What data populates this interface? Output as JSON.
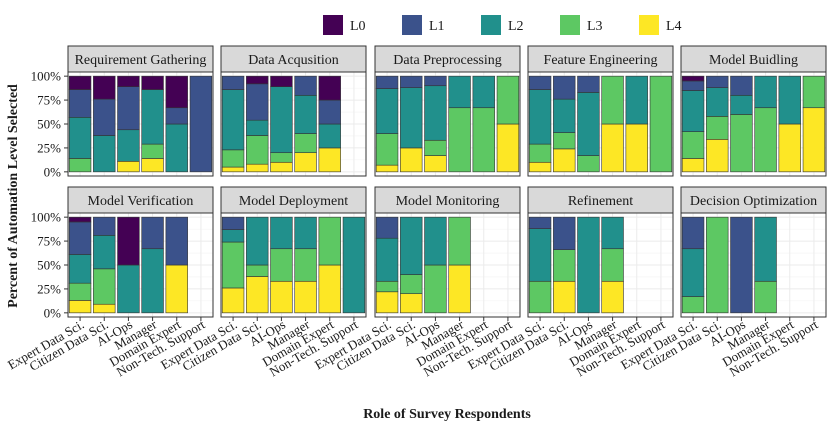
{
  "chart_data": {
    "type": "bar",
    "stacked": true,
    "ylabel": "Percent of Automation Level Selected",
    "xlabel": "Role of Survey Respondents",
    "ylim": [
      0,
      100
    ],
    "y_ticks": [
      "0%",
      "25%",
      "50%",
      "75%",
      "100%"
    ],
    "y_tick_values": [
      0,
      25,
      50,
      75,
      100
    ],
    "legend_position": "top",
    "levels": [
      "L0",
      "L1",
      "L2",
      "L3",
      "L4"
    ],
    "colors": {
      "L0": "#440154",
      "L1": "#3B528B",
      "L2": "#21908C",
      "L3": "#5DC863",
      "L4": "#FDE725"
    },
    "categories": [
      "Expert Data Sci.",
      "Citizen Data Sci.",
      "AI-Ops",
      "Manager",
      "Domain Expert",
      "Non-Tech. Support"
    ],
    "facets": [
      {
        "title": "Requirement Gathering",
        "values": [
          {
            "L0": 14,
            "L1": 29,
            "L2": 43,
            "L3": 14,
            "L4": 0
          },
          {
            "L0": 24,
            "L1": 38,
            "L2": 38,
            "L3": 0,
            "L4": 0
          },
          {
            "L0": 11,
            "L1": 45,
            "L2": 33,
            "L3": 0,
            "L4": 11
          },
          {
            "L0": 14,
            "L1": 0,
            "L2": 57,
            "L3": 15,
            "L4": 14
          },
          {
            "L0": 33,
            "L1": 17,
            "L2": 50,
            "L3": 0,
            "L4": 0
          },
          {
            "L0": 0,
            "L1": 100,
            "L2": 0,
            "L3": 0,
            "L4": 0
          }
        ]
      },
      {
        "title": "Data Acqusition",
        "values": [
          {
            "L0": 0,
            "L1": 14,
            "L2": 63,
            "L3": 18,
            "L4": 5
          },
          {
            "L0": 8,
            "L1": 38,
            "L2": 16,
            "L3": 30,
            "L4": 8
          },
          {
            "L0": 11,
            "L1": 0,
            "L2": 69,
            "L3": 10,
            "L4": 10
          },
          {
            "L0": 0,
            "L1": 20,
            "L2": 40,
            "L3": 20,
            "L4": 20
          },
          {
            "L0": 25,
            "L1": 25,
            "L2": 25,
            "L3": 0,
            "L4": 25
          }
        ]
      },
      {
        "title": "Data Preprocessing",
        "values": [
          {
            "L0": 0,
            "L1": 13,
            "L2": 47,
            "L3": 33,
            "L4": 7
          },
          {
            "L0": 0,
            "L1": 12,
            "L2": 63,
            "L3": 0,
            "L4": 25
          },
          {
            "L0": 0,
            "L1": 10,
            "L2": 57,
            "L3": 16,
            "L4": 17
          },
          {
            "L0": 0,
            "L1": 0,
            "L2": 33,
            "L3": 67,
            "L4": 0
          },
          {
            "L0": 0,
            "L1": 0,
            "L2": 33,
            "L3": 67,
            "L4": 0
          },
          {
            "L0": 0,
            "L1": 0,
            "L2": 0,
            "L3": 50,
            "L4": 50
          }
        ]
      },
      {
        "title": "Feature Engineering",
        "values": [
          {
            "L0": 0,
            "L1": 14,
            "L2": 57,
            "L3": 19,
            "L4": 10
          },
          {
            "L0": 0,
            "L1": 24,
            "L2": 35,
            "L3": 17,
            "L4": 24
          },
          {
            "L0": 0,
            "L1": 17,
            "L2": 66,
            "L3": 17,
            "L4": 0
          },
          {
            "L0": 0,
            "L1": 0,
            "L2": 0,
            "L3": 50,
            "L4": 50
          },
          {
            "L0": 0,
            "L1": 0,
            "L2": 50,
            "L3": 0,
            "L4": 50
          },
          {
            "L0": 0,
            "L1": 0,
            "L2": 0,
            "L3": 100,
            "L4": 0
          }
        ]
      },
      {
        "title": "Model Buidling",
        "values": [
          {
            "L0": 5,
            "L1": 10,
            "L2": 43,
            "L3": 28,
            "L4": 14
          },
          {
            "L0": 0,
            "L1": 12,
            "L2": 30,
            "L3": 24,
            "L4": 34
          },
          {
            "L0": 0,
            "L1": 20,
            "L2": 20,
            "L3": 60,
            "L4": 0
          },
          {
            "L0": 0,
            "L1": 0,
            "L2": 33,
            "L3": 67,
            "L4": 0
          },
          {
            "L0": 0,
            "L1": 0,
            "L2": 50,
            "L3": 0,
            "L4": 50
          },
          {
            "L0": 0,
            "L1": 0,
            "L2": 0,
            "L3": 33,
            "L4": 67
          }
        ]
      },
      {
        "title": "Model Verification",
        "values": [
          {
            "L0": 5,
            "L1": 34,
            "L2": 30,
            "L3": 18,
            "L4": 13
          },
          {
            "L0": 0,
            "L1": 19,
            "L2": 35,
            "L3": 37,
            "L4": 9
          },
          {
            "L0": 50,
            "L1": 0,
            "L2": 50,
            "L3": 0,
            "L4": 0
          },
          {
            "L0": 0,
            "L1": 33,
            "L2": 67,
            "L3": 0,
            "L4": 0
          },
          {
            "L0": 0,
            "L1": 50,
            "L2": 0,
            "L3": 0,
            "L4": 50
          }
        ]
      },
      {
        "title": "Model Deployment",
        "values": [
          {
            "L0": 0,
            "L1": 13,
            "L2": 13,
            "L3": 48,
            "L4": 26
          },
          {
            "L0": 0,
            "L1": 0,
            "L2": 50,
            "L3": 12,
            "L4": 38
          },
          {
            "L0": 0,
            "L1": 0,
            "L2": 33,
            "L3": 34,
            "L4": 33
          },
          {
            "L0": 0,
            "L1": 0,
            "L2": 33,
            "L3": 34,
            "L4": 33
          },
          {
            "L0": 0,
            "L1": 0,
            "L2": 0,
            "L3": 50,
            "L4": 50
          },
          {
            "L0": 0,
            "L1": 0,
            "L2": 100,
            "L3": 0,
            "L4": 0
          }
        ]
      },
      {
        "title": "Model Monitoring",
        "values": [
          {
            "L0": 0,
            "L1": 22,
            "L2": 45,
            "L3": 11,
            "L4": 22
          },
          {
            "L0": 0,
            "L1": 0,
            "L2": 60,
            "L3": 20,
            "L4": 20
          },
          {
            "L0": 0,
            "L1": 0,
            "L2": 50,
            "L3": 50,
            "L4": 0
          },
          {
            "L0": 0,
            "L1": 0,
            "L2": 0,
            "L3": 50,
            "L4": 50
          }
        ]
      },
      {
        "title": "Refinement",
        "values": [
          {
            "L0": 0,
            "L1": 12,
            "L2": 55,
            "L3": 33,
            "L4": 0
          },
          {
            "L0": 0,
            "L1": 34,
            "L2": 0,
            "L3": 33,
            "L4": 33
          },
          {
            "L0": 0,
            "L1": 0,
            "L2": 100,
            "L3": 0,
            "L4": 0
          },
          {
            "L0": 0,
            "L1": 0,
            "L2": 33,
            "L3": 34,
            "L4": 33
          }
        ]
      },
      {
        "title": "Decision Optimization",
        "values": [
          {
            "L0": 0,
            "L1": 33,
            "L2": 50,
            "L3": 17,
            "L4": 0
          },
          {
            "L0": 0,
            "L1": 0,
            "L2": 0,
            "L3": 100,
            "L4": 0
          },
          {
            "L0": 0,
            "L1": 100,
            "L2": 0,
            "L3": 0,
            "L4": 0
          },
          {
            "L0": 0,
            "L1": 0,
            "L2": 67,
            "L3": 33,
            "L4": 0
          }
        ]
      }
    ]
  }
}
